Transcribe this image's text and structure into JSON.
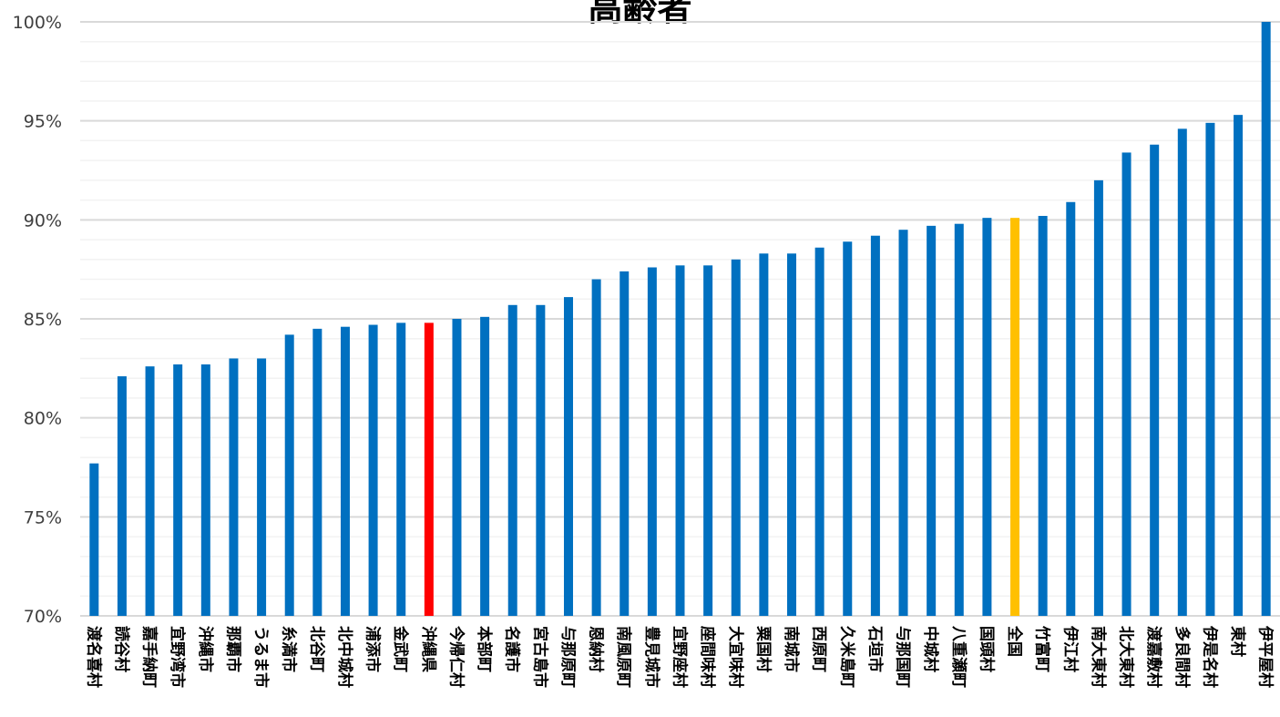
{
  "chart_data": {
    "type": "bar",
    "title": "高齢者",
    "ylim": [
      0.7,
      1.0
    ],
    "yticks": [
      {
        "value": 0.7,
        "label": "70%"
      },
      {
        "value": 0.75,
        "label": "75%"
      },
      {
        "value": 0.8,
        "label": "80%"
      },
      {
        "value": 0.85,
        "label": "85%"
      },
      {
        "value": 0.9,
        "label": "90%"
      },
      {
        "value": 0.95,
        "label": "95%"
      },
      {
        "value": 1.0,
        "label": "100%"
      }
    ],
    "grid": true,
    "colors": {
      "default": "#0070C0",
      "prefecture": "#FF0000",
      "national": "#FFC000",
      "grid": "#D9D9D9",
      "minor_grid": "#F2F2F2"
    },
    "categories": [
      "渡名喜村",
      "読谷村",
      "嘉手納町",
      "宜野湾市",
      "沖縄市",
      "那覇市",
      "うるま市",
      "糸満市",
      "北谷町",
      "北中城村",
      "浦添市",
      "金武町",
      "沖縄県",
      "今帰仁村",
      "本部町",
      "名護市",
      "宮古島市",
      "与那原町",
      "恩納村",
      "南風原町",
      "豊見城市",
      "宜野座村",
      "座間味村",
      "大宜味村",
      "粟国村",
      "南城市",
      "西原町",
      "久米島町",
      "石垣市",
      "与那国町",
      "中城村",
      "八重瀬町",
      "国頭村",
      "全国",
      "竹富町",
      "伊江村",
      "南大東村",
      "北大東村",
      "渡嘉敷村",
      "多良間村",
      "伊是名村",
      "東村",
      "伊平屋村"
    ],
    "values": [
      0.777,
      0.821,
      0.826,
      0.827,
      0.827,
      0.83,
      0.83,
      0.842,
      0.845,
      0.846,
      0.847,
      0.848,
      0.848,
      0.85,
      0.851,
      0.857,
      0.857,
      0.861,
      0.87,
      0.874,
      0.876,
      0.877,
      0.877,
      0.88,
      0.883,
      0.883,
      0.886,
      0.889,
      0.892,
      0.895,
      0.897,
      0.898,
      0.901,
      0.901,
      0.902,
      0.909,
      0.92,
      0.934,
      0.938,
      0.946,
      0.949,
      0.953,
      1.0
    ],
    "highlight": {
      "沖縄県": "prefecture",
      "全国": "national"
    }
  }
}
